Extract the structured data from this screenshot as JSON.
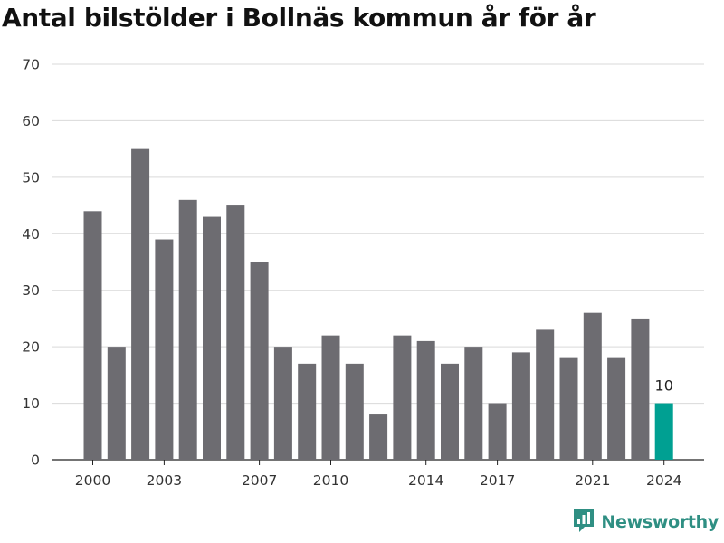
{
  "title": "Antal bilstölder i Bollnäs kommun år för år",
  "brand": {
    "name": "Newsworthy",
    "logo_icon": "newsworthy-logo-icon"
  },
  "colors": {
    "bar": "#6d6c71",
    "highlight": "#00a092",
    "grid": "#d9d9d9",
    "brand": "#2f8f83"
  },
  "chart_data": {
    "type": "bar",
    "title": "Antal bilstölder i Bollnäs kommun år för år",
    "xlabel": "",
    "ylabel": "",
    "categories": [
      "2000",
      "2001",
      "2002",
      "2003",
      "2004",
      "2005",
      "2006",
      "2007",
      "2008",
      "2009",
      "2010",
      "2011",
      "2012",
      "2013",
      "2014",
      "2015",
      "2016",
      "2017",
      "2018",
      "2019",
      "2020",
      "2021",
      "2022",
      "2023",
      "2024"
    ],
    "values": [
      44,
      20,
      55,
      39,
      46,
      43,
      45,
      35,
      20,
      17,
      22,
      17,
      8,
      22,
      21,
      17,
      20,
      10,
      19,
      23,
      18,
      26,
      18,
      25,
      10
    ],
    "x_tick_labels": [
      "2000",
      "2003",
      "2007",
      "2010",
      "2014",
      "2017",
      "2021",
      "2024"
    ],
    "y_ticks": [
      0,
      10,
      20,
      30,
      40,
      50,
      60,
      70
    ],
    "ylim": [
      0,
      70
    ],
    "grid": true,
    "highlight": {
      "category": "2024",
      "label": "10"
    }
  }
}
